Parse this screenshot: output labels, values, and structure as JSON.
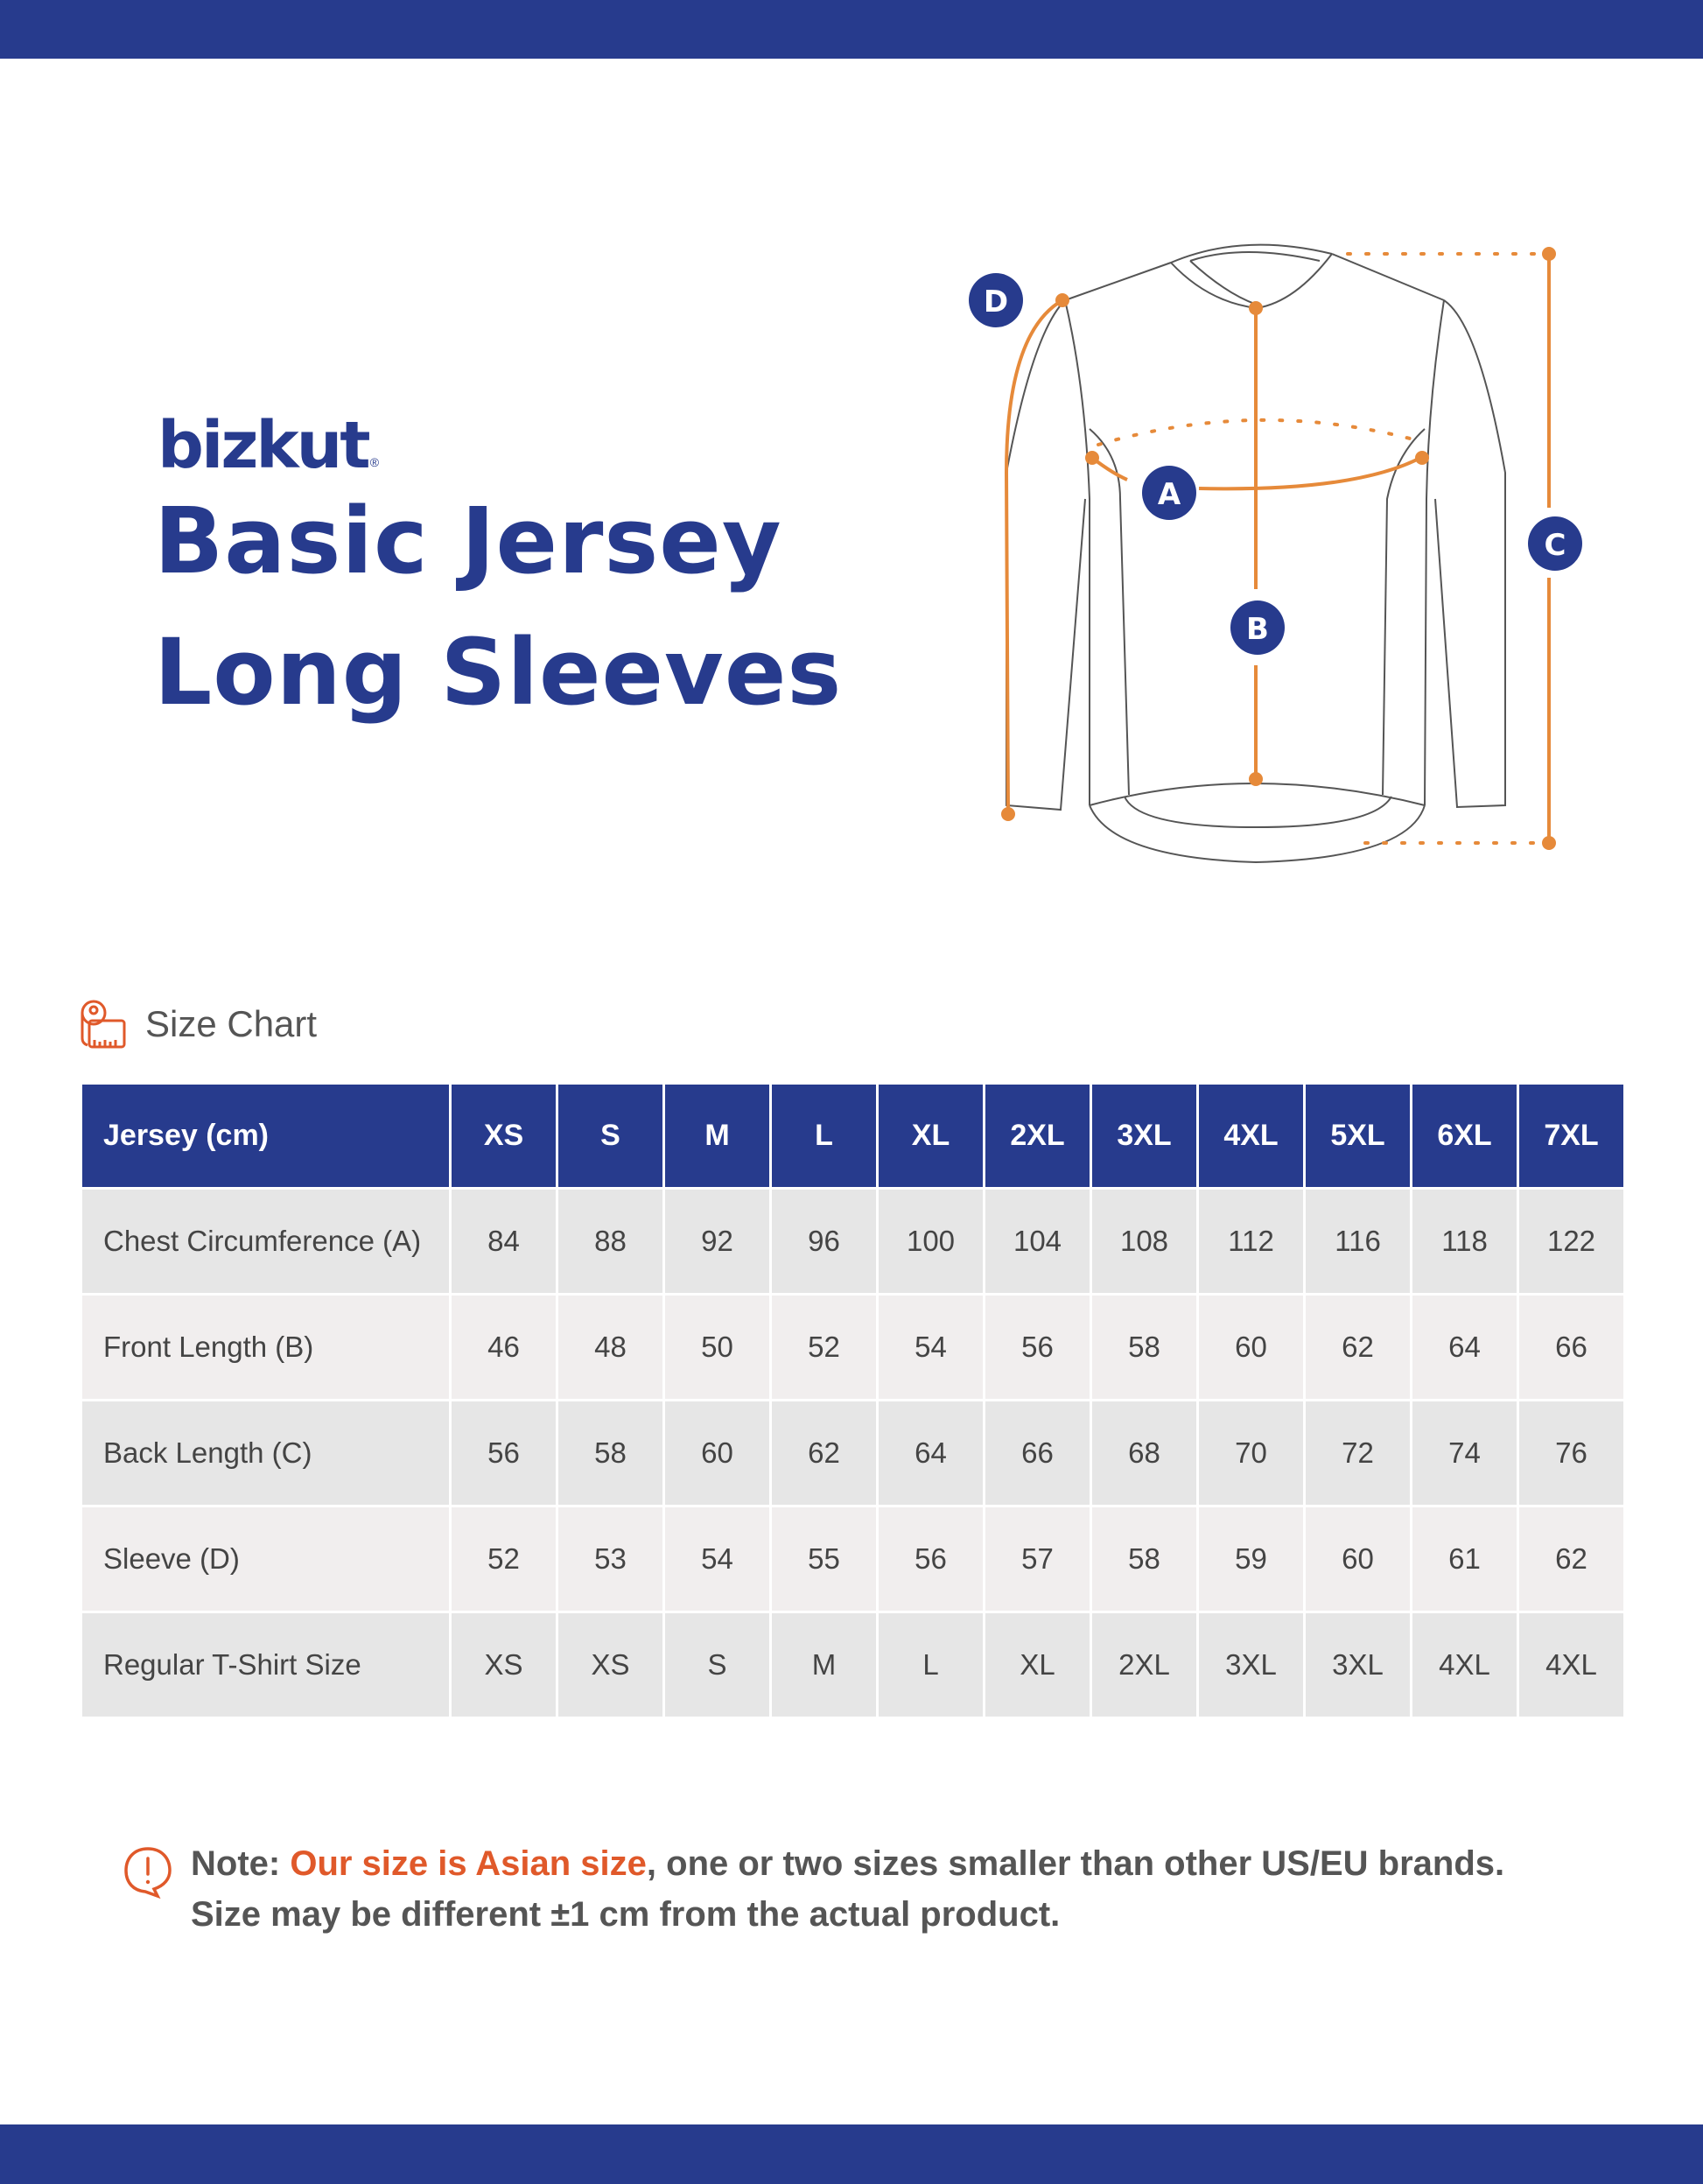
{
  "brand": {
    "logo_text": "bizkut",
    "registered_mark": "®",
    "primary_color": "#273b8d",
    "accent_color": "#e68a3a",
    "warning_color": "#e0592a"
  },
  "product": {
    "title_line1": "Basic Jersey",
    "title_line2": "Long Sleeves"
  },
  "diagram": {
    "markers": [
      {
        "label": "A",
        "meaning": "Chest Circumference"
      },
      {
        "label": "B",
        "meaning": "Front Length"
      },
      {
        "label": "C",
        "meaning": "Back Length"
      },
      {
        "label": "D",
        "meaning": "Sleeve"
      }
    ]
  },
  "size_chart": {
    "heading": "Size Chart",
    "icon": "measuring-tape-icon",
    "header_label": "Jersey (cm)",
    "sizes": [
      "XS",
      "S",
      "M",
      "L",
      "XL",
      "2XL",
      "3XL",
      "4XL",
      "5XL",
      "6XL",
      "7XL"
    ],
    "rows": [
      {
        "label": "Chest Circumference (A)",
        "values": [
          "84",
          "88",
          "92",
          "96",
          "100",
          "104",
          "108",
          "112",
          "116",
          "118",
          "122"
        ]
      },
      {
        "label": "Front Length (B)",
        "values": [
          "46",
          "48",
          "50",
          "52",
          "54",
          "56",
          "58",
          "60",
          "62",
          "64",
          "66"
        ]
      },
      {
        "label": "Back Length (C)",
        "values": [
          "56",
          "58",
          "60",
          "62",
          "64",
          "66",
          "68",
          "70",
          "72",
          "74",
          "76"
        ]
      },
      {
        "label": "Sleeve (D)",
        "values": [
          "52",
          "53",
          "54",
          "55",
          "56",
          "57",
          "58",
          "59",
          "60",
          "61",
          "62"
        ]
      },
      {
        "label": "Regular T-Shirt Size",
        "values": [
          "XS",
          "XS",
          "S",
          "M",
          "L",
          "XL",
          "2XL",
          "3XL",
          "3XL",
          "4XL",
          "4XL"
        ]
      }
    ]
  },
  "note": {
    "icon": "alert-bubble-icon",
    "prefix": "Note: ",
    "highlight": "Our size is Asian size",
    "rest_line1": ", one or two sizes smaller than other US/EU brands.",
    "line2": "Size may be different ±1 cm from the actual product."
  }
}
